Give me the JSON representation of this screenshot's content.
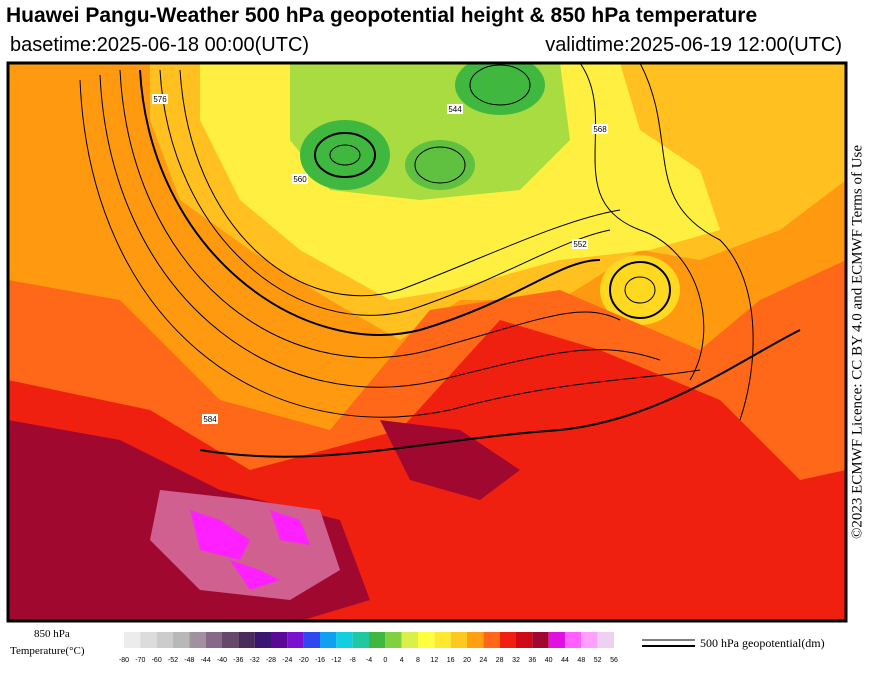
{
  "header": {
    "title": "Huawei Pangu-Weather 500 hPa geopotential height & 850 hPa temperature",
    "basetime": "basetime:2025-06-18 00:00(UTC)",
    "validtime": "validtime:2025-06-19 12:00(UTC)"
  },
  "copyright": "©2023 ECMWF Licence: CC BY 4.0 and ECMWF Terms of Use",
  "colorbar": {
    "title_line1": "850 hPa",
    "title_line2": "Temperature(°C)",
    "ticks": [
      -80,
      -70,
      -60,
      -52,
      -48,
      -44,
      -40,
      -36,
      -32,
      -28,
      -24,
      -20,
      -16,
      -12,
      -8,
      -4,
      0,
      4,
      8,
      12,
      16,
      20,
      24,
      28,
      32,
      36,
      40,
      44,
      48,
      52,
      56
    ],
    "colors": [
      "#ececec",
      "#dcdcdc",
      "#cccccc",
      "#b8b8b8",
      "#a090a0",
      "#886888",
      "#684868",
      "#4a2a5a",
      "#3a1470",
      "#5a0898",
      "#7a10d0",
      "#3048f0",
      "#10a0f0",
      "#10d0e0",
      "#20c8a0",
      "#40b840",
      "#80d040",
      "#d8f048",
      "#ffff40",
      "#ffe830",
      "#ffc820",
      "#ffa010",
      "#ff6818",
      "#f02010",
      "#d00818",
      "#a00830",
      "#e010e0",
      "#ff60ff",
      "#ffa0ff",
      "#f0d0f0"
    ]
  },
  "line_legend": "500 hPa geopotential(dm)",
  "contour_labels": [
    "576",
    "584",
    "560",
    "568",
    "552",
    "544"
  ]
}
